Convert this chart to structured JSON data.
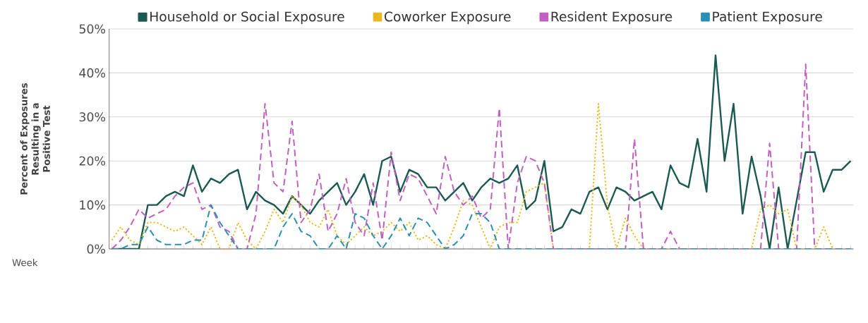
{
  "chart_data": {
    "type": "line",
    "ylabel": "Percent of Exposures Resulting in a Positive Test",
    "xlabel": "Week",
    "categories": [
      null,
      null,
      null,
      null,
      null,
      null,
      null,
      null,
      null,
      null,
      null,
      null,
      null,
      null,
      null,
      null,
      null,
      null,
      null,
      null,
      null,
      null,
      null,
      null,
      null,
      null,
      null,
      null,
      null,
      null,
      null,
      null,
      null,
      null,
      null,
      null,
      null,
      null,
      null,
      null,
      null,
      null,
      null,
      null,
      null,
      null,
      null,
      null,
      null,
      null,
      null,
      null,
      null,
      null,
      null,
      null,
      null,
      null,
      null,
      null,
      null,
      null,
      null,
      null,
      null,
      null,
      null,
      null,
      null,
      null,
      null,
      null,
      null,
      null,
      null,
      null,
      null,
      null,
      null,
      null,
      null,
      null,
      null
    ],
    "series": [
      {
        "name": "Household or Social Exposure",
        "color": "#1a5a50",
        "line_style": "solid",
        "values": [
          0,
          0,
          0,
          0,
          10,
          10,
          12,
          13,
          12,
          19,
          13,
          16,
          15,
          17,
          18,
          9,
          13,
          11,
          10,
          8,
          12,
          10,
          8,
          11,
          13,
          15,
          10,
          13,
          17,
          10,
          20,
          21,
          13,
          18,
          17,
          14,
          14,
          11,
          13,
          15,
          11,
          14,
          16,
          15,
          16,
          19,
          9,
          11,
          20,
          4,
          5,
          9,
          8,
          13,
          14,
          9,
          14,
          13,
          11,
          12,
          13,
          9,
          19,
          15,
          14,
          25,
          13,
          44,
          20,
          33,
          8,
          21,
          12,
          0,
          14,
          0,
          11,
          22,
          22,
          13,
          18,
          18,
          20
        ]
      },
      {
        "name": "Coworker Exposure",
        "color": "#e8b820",
        "line_style": "dotted",
        "values": [
          2,
          5,
          2,
          1,
          6,
          6,
          5,
          4,
          5,
          3,
          1,
          5,
          0,
          0,
          6,
          2,
          0,
          4,
          9,
          6,
          12,
          10,
          6,
          5,
          9,
          3,
          1,
          3,
          5,
          3,
          4,
          6,
          4,
          6,
          2,
          3,
          1,
          0,
          5,
          11,
          10,
          5,
          0,
          5,
          6,
          6,
          13,
          14,
          15,
          0,
          0,
          0,
          0,
          0,
          33,
          10,
          0,
          7,
          3,
          0,
          0,
          0,
          0,
          0,
          0,
          0,
          0,
          0,
          0,
          0,
          0,
          0,
          9,
          10,
          8,
          9,
          0,
          0,
          0,
          5,
          0,
          0,
          0
        ]
      },
      {
        "name": "Resident Exposure",
        "color": "#c060c0",
        "line_style": "dashed",
        "values": [
          0,
          2,
          5,
          9,
          7,
          8,
          9,
          12,
          14,
          15,
          9,
          10,
          5,
          4,
          0,
          0,
          8,
          33,
          15,
          13,
          29,
          6,
          9,
          17,
          4,
          8,
          16,
          6,
          3,
          15,
          2,
          22,
          11,
          17,
          16,
          12,
          8,
          21,
          13,
          10,
          12,
          7,
          9,
          32,
          0,
          15,
          21,
          20,
          15,
          0,
          0,
          0,
          0,
          0,
          0,
          0,
          0,
          0,
          25,
          0,
          0,
          0,
          4,
          0,
          0,
          0,
          0,
          0,
          0,
          0,
          0,
          0,
          0,
          24,
          0,
          0,
          0,
          42,
          0,
          0,
          0,
          0,
          0
        ]
      },
      {
        "name": "Patient Exposure",
        "color": "#2a8fb5",
        "line_style": "dashed",
        "values": [
          0,
          0,
          1,
          1,
          5,
          2,
          1,
          1,
          1,
          2,
          2,
          10,
          6,
          3,
          0,
          0,
          0,
          0,
          0,
          5,
          8,
          4,
          3,
          0,
          0,
          3,
          0,
          8,
          7,
          3,
          0,
          3,
          7,
          3,
          7,
          6,
          3,
          0,
          1,
          3,
          8,
          8,
          6,
          0,
          0,
          0,
          0,
          0,
          0,
          0,
          0,
          0,
          0,
          0,
          0,
          0,
          0,
          0,
          0,
          0,
          0,
          0,
          0,
          0,
          0,
          0,
          0,
          0,
          0,
          0,
          0,
          0,
          0,
          0,
          0,
          0,
          0,
          0,
          0,
          0,
          0,
          0,
          0
        ]
      }
    ],
    "ylim": [
      0,
      50
    ],
    "yticks": [
      {
        "value": 0,
        "label": "0%"
      },
      {
        "value": 10,
        "label": "10%"
      },
      {
        "value": 20,
        "label": "20%"
      },
      {
        "value": 30,
        "label": "30%"
      },
      {
        "value": 40,
        "label": "40%"
      },
      {
        "value": 50,
        "label": "50%"
      }
    ],
    "grid": "y",
    "legend": "top",
    "marker": "none"
  }
}
